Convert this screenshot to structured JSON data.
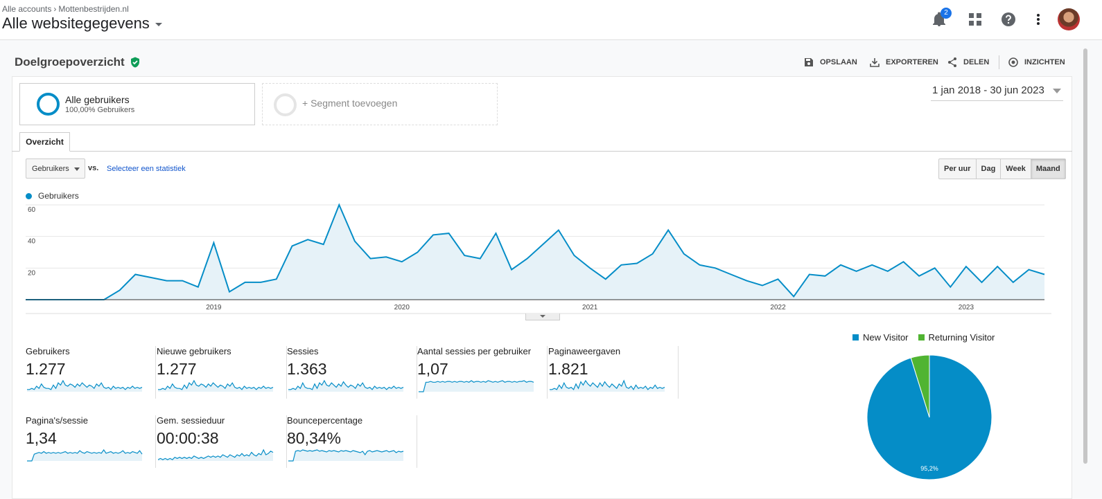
{
  "header": {
    "breadcrumb": [
      "Alle accounts",
      "Mottenbestrijden.nl"
    ],
    "property_title": "Alle websitegegevens",
    "notification_count": "2"
  },
  "report": {
    "title": "Doelgroepoverzicht",
    "actions": {
      "save": "OPSLAAN",
      "export": "EXPORTEREN",
      "share": "DELEN",
      "insights": "INZICHTEN"
    }
  },
  "segments": {
    "active": {
      "name": "Alle gebruikers",
      "sub": "100,00% Gebruikers"
    },
    "add": "+ Segment toevoegen"
  },
  "date_range": "1 jan 2018 - 30 jun 2023",
  "tabs": [
    "Overzicht"
  ],
  "controls": {
    "metric": "Gebruikers",
    "vs": "vs.",
    "select_stat": "Selecteer een statistiek",
    "granularity": [
      "Per uur",
      "Dag",
      "Week",
      "Maand"
    ],
    "granularity_selected": "Maand"
  },
  "colors": {
    "series": "#058dc7",
    "new_visitor": "#058dc7",
    "returning_visitor": "#50b432"
  },
  "chart_data": [
    {
      "type": "area",
      "series": [
        {
          "name": "Gebruikers",
          "values": [
            0,
            0,
            0,
            0,
            0,
            0,
            6,
            16,
            14,
            12,
            12,
            8,
            36,
            5,
            11,
            11,
            13,
            34,
            38,
            35,
            60,
            37,
            26,
            27,
            24,
            30,
            41,
            42,
            28,
            26,
            42,
            19,
            26,
            35,
            44,
            28,
            20,
            13,
            22,
            23,
            29,
            44,
            29,
            22,
            20,
            16,
            12,
            9,
            13,
            2,
            16,
            15,
            22,
            18,
            22,
            18,
            24,
            15,
            20,
            8,
            21,
            11,
            21,
            11,
            19,
            16
          ],
          "x_start": "2018-01",
          "x_step": "month"
        }
      ],
      "x_ticks": [
        "2019",
        "2020",
        "2021",
        "2022",
        "2023"
      ],
      "y_ticks": [
        "20",
        "40",
        "60"
      ],
      "ylim": [
        0,
        60
      ],
      "grid": true,
      "legend": "top-left"
    },
    {
      "type": "pie",
      "labels": [
        "New Visitor",
        "Returning Visitor"
      ],
      "values": [
        95.2,
        4.8
      ],
      "data_labels": [
        "95,2%"
      ],
      "legend": "top"
    }
  ],
  "scorecards": [
    {
      "label": "Gebruikers",
      "value": "1.277",
      "spark": [
        2,
        2,
        3,
        2,
        5,
        3,
        7,
        4,
        3,
        3,
        2,
        6,
        3,
        8,
        6,
        10,
        6,
        5,
        7,
        6,
        4,
        7,
        5,
        8,
        6,
        4,
        6,
        5,
        3,
        7,
        5,
        8,
        4,
        3,
        4,
        2,
        5,
        3,
        4,
        3,
        4,
        2,
        4,
        3,
        5,
        3,
        4,
        3,
        4
      ]
    },
    {
      "label": "Nieuwe gebruikers",
      "value": "1.277",
      "spark": [
        2,
        2,
        3,
        2,
        5,
        3,
        7,
        4,
        3,
        3,
        2,
        6,
        3,
        8,
        6,
        10,
        6,
        5,
        7,
        6,
        4,
        7,
        5,
        8,
        6,
        4,
        6,
        5,
        3,
        7,
        5,
        8,
        4,
        3,
        4,
        2,
        5,
        3,
        4,
        3,
        4,
        2,
        4,
        3,
        5,
        3,
        4,
        3,
        4
      ]
    },
    {
      "label": "Sessies",
      "value": "1.363",
      "spark": [
        2,
        2,
        3,
        2,
        5,
        3,
        8,
        4,
        3,
        3,
        2,
        7,
        3,
        8,
        6,
        10,
        6,
        5,
        8,
        6,
        4,
        7,
        5,
        9,
        6,
        4,
        6,
        5,
        3,
        7,
        5,
        8,
        4,
        3,
        4,
        2,
        5,
        3,
        4,
        3,
        4,
        2,
        4,
        3,
        5,
        3,
        4,
        3,
        4
      ]
    },
    {
      "label": "Aantal sessies per gebruiker",
      "value": "1,07",
      "spark": [
        0,
        0,
        0,
        12,
        12,
        13,
        12,
        12,
        13,
        12,
        13,
        12,
        13,
        13,
        12,
        13,
        12,
        13,
        13,
        12,
        13,
        12,
        14,
        12,
        13,
        13,
        12,
        13,
        12,
        14,
        13,
        12,
        13,
        12,
        13,
        14,
        12,
        13,
        13,
        12,
        13,
        12,
        13,
        13,
        14,
        12,
        13,
        13,
        12
      ]
    },
    {
      "label": "Paginaweergaven",
      "value": "1.821",
      "spark": [
        2,
        2,
        3,
        2,
        6,
        3,
        8,
        4,
        3,
        4,
        2,
        7,
        3,
        9,
        6,
        10,
        7,
        5,
        8,
        6,
        4,
        8,
        5,
        9,
        6,
        4,
        7,
        5,
        3,
        7,
        5,
        10,
        4,
        3,
        5,
        2,
        6,
        3,
        4,
        3,
        5,
        2,
        4,
        3,
        6,
        3,
        4,
        3,
        4
      ]
    },
    {
      "label": "Pagina's/sessie",
      "value": "1,34",
      "spark": [
        0,
        0,
        0,
        8,
        9,
        10,
        9,
        11,
        9,
        10,
        9,
        10,
        9,
        10,
        9,
        10,
        11,
        9,
        10,
        9,
        10,
        9,
        12,
        10,
        9,
        11,
        10,
        9,
        10,
        9,
        10,
        9,
        13,
        9,
        10,
        11,
        9,
        10,
        9,
        10,
        12,
        9,
        10,
        9,
        11,
        10,
        9,
        12,
        8
      ]
    },
    {
      "label": "Gem. sessieduur",
      "value": "00:00:38",
      "spark": [
        1,
        2,
        1,
        2,
        1,
        2,
        1,
        3,
        2,
        3,
        2,
        3,
        2,
        3,
        2,
        4,
        3,
        2,
        3,
        2,
        3,
        4,
        3,
        4,
        3,
        4,
        3,
        5,
        4,
        3,
        5,
        4,
        3,
        5,
        4,
        6,
        4,
        5,
        4,
        7,
        5,
        4,
        6,
        5,
        9,
        5,
        6,
        8,
        7
      ]
    },
    {
      "label": "Bouncepercentage",
      "value": "80,34%",
      "spark": [
        0,
        0,
        0,
        14,
        15,
        14,
        16,
        15,
        14,
        15,
        14,
        15,
        16,
        14,
        15,
        14,
        13,
        15,
        14,
        15,
        14,
        13,
        15,
        14,
        15,
        14,
        13,
        15,
        14,
        13,
        12,
        14,
        9,
        14,
        15,
        13,
        14,
        15,
        14,
        13,
        14,
        15,
        13,
        14,
        15,
        12,
        14,
        13,
        14
      ]
    }
  ]
}
